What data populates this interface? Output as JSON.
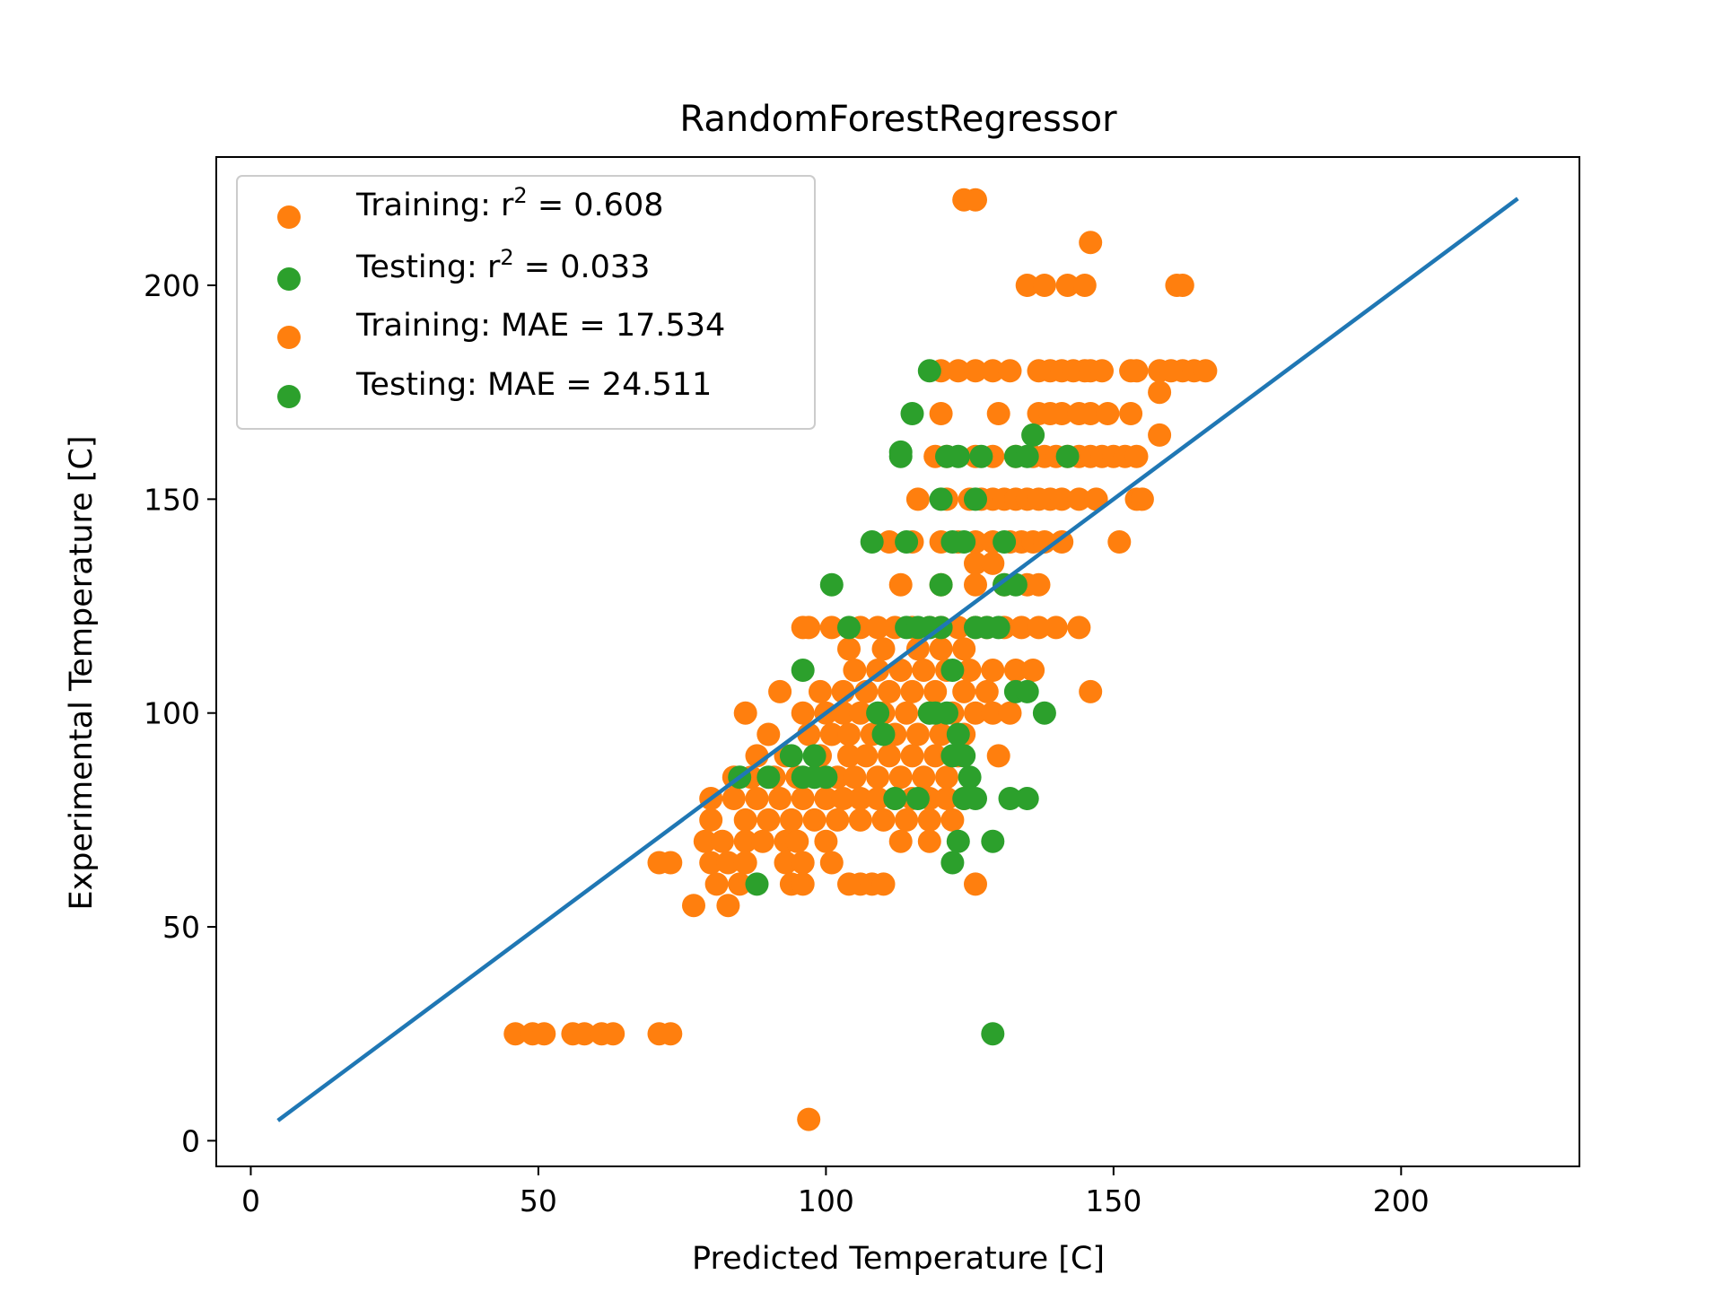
{
  "chart_data": {
    "type": "scatter",
    "title": "RandomForestRegressor",
    "xlabel": "Predicted Temperature [C]",
    "ylabel": "Experimental Temperature [C]",
    "xlim": [
      -6,
      231
    ],
    "ylim": [
      -6,
      230
    ],
    "xticks": [
      0,
      50,
      100,
      150,
      200
    ],
    "yticks": [
      0,
      50,
      100,
      150,
      200
    ],
    "legend_position": "top-left",
    "legend": [
      {
        "prefix": "Training: r",
        "sup": "2",
        "suffix": " = 0.608",
        "color": "#ff7f0e"
      },
      {
        "prefix": "Testing: r",
        "sup": "2",
        "suffix": " = 0.033",
        "color": "#2ca02c"
      },
      {
        "prefix": "Training: MAE = 17.534",
        "sup": "",
        "suffix": "",
        "color": "#ff7f0e"
      },
      {
        "prefix": "Testing: MAE = 24.511",
        "sup": "",
        "suffix": "",
        "color": "#2ca02c"
      }
    ],
    "line": {
      "color": "#1f77b4",
      "x": [
        5,
        220
      ],
      "y": [
        5,
        220
      ]
    },
    "series": [
      {
        "name": "Training",
        "color": "#ff7f0e",
        "points": [
          [
            124,
            220
          ],
          [
            126,
            220
          ],
          [
            146,
            210
          ],
          [
            135,
            200
          ],
          [
            138,
            200
          ],
          [
            142,
            200
          ],
          [
            145,
            200
          ],
          [
            161,
            200
          ],
          [
            162,
            200
          ],
          [
            120,
            180
          ],
          [
            123,
            180
          ],
          [
            126,
            180
          ],
          [
            129,
            180
          ],
          [
            132,
            180
          ],
          [
            137,
            180
          ],
          [
            139,
            180
          ],
          [
            141,
            180
          ],
          [
            143,
            180
          ],
          [
            145,
            180
          ],
          [
            146,
            180
          ],
          [
            148,
            180
          ],
          [
            153,
            180
          ],
          [
            154,
            180
          ],
          [
            158,
            180
          ],
          [
            160,
            180
          ],
          [
            162,
            180
          ],
          [
            164,
            180
          ],
          [
            166,
            180
          ],
          [
            158,
            175
          ],
          [
            120,
            170
          ],
          [
            130,
            170
          ],
          [
            137,
            170
          ],
          [
            139,
            170
          ],
          [
            141,
            170
          ],
          [
            144,
            170
          ],
          [
            146,
            170
          ],
          [
            149,
            170
          ],
          [
            153,
            170
          ],
          [
            158,
            165
          ],
          [
            119,
            160
          ],
          [
            121,
            160
          ],
          [
            126,
            160
          ],
          [
            129,
            160
          ],
          [
            133,
            160
          ],
          [
            136,
            160
          ],
          [
            138,
            160
          ],
          [
            140,
            160
          ],
          [
            142,
            160
          ],
          [
            144,
            160
          ],
          [
            146,
            160
          ],
          [
            148,
            160
          ],
          [
            150,
            160
          ],
          [
            152,
            160
          ],
          [
            154,
            160
          ],
          [
            116,
            150
          ],
          [
            121,
            150
          ],
          [
            125,
            150
          ],
          [
            127,
            150
          ],
          [
            129,
            150
          ],
          [
            131,
            150
          ],
          [
            133,
            150
          ],
          [
            135,
            150
          ],
          [
            137,
            150
          ],
          [
            139,
            150
          ],
          [
            141,
            150
          ],
          [
            144,
            150
          ],
          [
            147,
            150
          ],
          [
            154,
            150
          ],
          [
            155,
            150
          ],
          [
            111,
            140
          ],
          [
            115,
            140
          ],
          [
            120,
            140
          ],
          [
            123,
            140
          ],
          [
            126,
            140
          ],
          [
            129,
            140
          ],
          [
            132,
            140
          ],
          [
            134,
            140
          ],
          [
            136,
            140
          ],
          [
            138,
            140
          ],
          [
            141,
            140
          ],
          [
            151,
            140
          ],
          [
            126,
            135
          ],
          [
            129,
            135
          ],
          [
            113,
            130
          ],
          [
            120,
            130
          ],
          [
            126,
            130
          ],
          [
            131,
            130
          ],
          [
            135,
            130
          ],
          [
            137,
            130
          ],
          [
            96,
            120
          ],
          [
            97,
            120
          ],
          [
            101,
            120
          ],
          [
            106,
            120
          ],
          [
            109,
            120
          ],
          [
            112,
            120
          ],
          [
            115,
            120
          ],
          [
            118,
            120
          ],
          [
            120,
            120
          ],
          [
            123,
            120
          ],
          [
            126,
            120
          ],
          [
            128,
            120
          ],
          [
            131,
            120
          ],
          [
            134,
            120
          ],
          [
            137,
            120
          ],
          [
            140,
            120
          ],
          [
            144,
            120
          ],
          [
            104,
            115
          ],
          [
            110,
            115
          ],
          [
            116,
            115
          ],
          [
            120,
            115
          ],
          [
            124,
            115
          ],
          [
            105,
            110
          ],
          [
            109,
            110
          ],
          [
            113,
            110
          ],
          [
            117,
            110
          ],
          [
            121,
            110
          ],
          [
            125,
            110
          ],
          [
            129,
            110
          ],
          [
            133,
            110
          ],
          [
            136,
            110
          ],
          [
            92,
            105
          ],
          [
            99,
            105
          ],
          [
            103,
            105
          ],
          [
            107,
            105
          ],
          [
            111,
            105
          ],
          [
            115,
            105
          ],
          [
            119,
            105
          ],
          [
            124,
            105
          ],
          [
            128,
            105
          ],
          [
            146,
            105
          ],
          [
            86,
            100
          ],
          [
            96,
            100
          ],
          [
            100,
            100
          ],
          [
            103,
            100
          ],
          [
            106,
            100
          ],
          [
            110,
            100
          ],
          [
            114,
            100
          ],
          [
            118,
            100
          ],
          [
            122,
            100
          ],
          [
            126,
            100
          ],
          [
            129,
            100
          ],
          [
            132,
            100
          ],
          [
            90,
            95
          ],
          [
            97,
            95
          ],
          [
            101,
            95
          ],
          [
            104,
            95
          ],
          [
            108,
            95
          ],
          [
            112,
            95
          ],
          [
            116,
            95
          ],
          [
            120,
            95
          ],
          [
            124,
            95
          ],
          [
            88,
            90
          ],
          [
            93,
            90
          ],
          [
            99,
            90
          ],
          [
            104,
            90
          ],
          [
            107,
            90
          ],
          [
            111,
            90
          ],
          [
            115,
            90
          ],
          [
            119,
            90
          ],
          [
            123,
            90
          ],
          [
            130,
            90
          ],
          [
            84,
            85
          ],
          [
            87,
            85
          ],
          [
            91,
            85
          ],
          [
            95,
            85
          ],
          [
            98,
            85
          ],
          [
            102,
            85
          ],
          [
            105,
            85
          ],
          [
            109,
            85
          ],
          [
            113,
            85
          ],
          [
            117,
            85
          ],
          [
            121,
            85
          ],
          [
            80,
            80
          ],
          [
            84,
            80
          ],
          [
            88,
            80
          ],
          [
            92,
            80
          ],
          [
            96,
            80
          ],
          [
            100,
            80
          ],
          [
            103,
            80
          ],
          [
            106,
            80
          ],
          [
            109,
            80
          ],
          [
            112,
            80
          ],
          [
            115,
            80
          ],
          [
            118,
            80
          ],
          [
            121,
            80
          ],
          [
            124,
            80
          ],
          [
            80,
            75
          ],
          [
            86,
            75
          ],
          [
            90,
            75
          ],
          [
            94,
            75
          ],
          [
            98,
            75
          ],
          [
            102,
            75
          ],
          [
            106,
            75
          ],
          [
            110,
            75
          ],
          [
            114,
            75
          ],
          [
            118,
            75
          ],
          [
            122,
            75
          ],
          [
            79,
            70
          ],
          [
            82,
            70
          ],
          [
            86,
            70
          ],
          [
            89,
            70
          ],
          [
            93,
            70
          ],
          [
            95,
            70
          ],
          [
            100,
            70
          ],
          [
            113,
            70
          ],
          [
            118,
            70
          ],
          [
            71,
            65
          ],
          [
            73,
            65
          ],
          [
            80,
            65
          ],
          [
            83,
            65
          ],
          [
            86,
            65
          ],
          [
            93,
            65
          ],
          [
            96,
            65
          ],
          [
            101,
            65
          ],
          [
            81,
            60
          ],
          [
            85,
            60
          ],
          [
            94,
            60
          ],
          [
            96,
            60
          ],
          [
            104,
            60
          ],
          [
            106,
            60
          ],
          [
            108,
            60
          ],
          [
            110,
            60
          ],
          [
            126,
            60
          ],
          [
            77,
            55
          ],
          [
            83,
            55
          ],
          [
            46,
            25
          ],
          [
            49,
            25
          ],
          [
            51,
            25
          ],
          [
            56,
            25
          ],
          [
            58,
            25
          ],
          [
            61,
            25
          ],
          [
            63,
            25
          ],
          [
            71,
            25
          ],
          [
            73,
            25
          ],
          [
            97,
            5
          ]
        ]
      },
      {
        "name": "Testing",
        "color": "#2ca02c",
        "points": [
          [
            118,
            180
          ],
          [
            115,
            170
          ],
          [
            113,
            161
          ],
          [
            113,
            160
          ],
          [
            121,
            160
          ],
          [
            123,
            160
          ],
          [
            127,
            160
          ],
          [
            133,
            160
          ],
          [
            135,
            160
          ],
          [
            142,
            160
          ],
          [
            136,
            165
          ],
          [
            120,
            150
          ],
          [
            126,
            150
          ],
          [
            108,
            140
          ],
          [
            114,
            140
          ],
          [
            122,
            140
          ],
          [
            124,
            140
          ],
          [
            131,
            140
          ],
          [
            101,
            130
          ],
          [
            120,
            130
          ],
          [
            131,
            130
          ],
          [
            133,
            130
          ],
          [
            104,
            120
          ],
          [
            114,
            120
          ],
          [
            116,
            120
          ],
          [
            118,
            120
          ],
          [
            120,
            120
          ],
          [
            126,
            120
          ],
          [
            128,
            120
          ],
          [
            130,
            120
          ],
          [
            96,
            110
          ],
          [
            122,
            110
          ],
          [
            133,
            105
          ],
          [
            135,
            105
          ],
          [
            138,
            100
          ],
          [
            109,
            100
          ],
          [
            118,
            100
          ],
          [
            119,
            100
          ],
          [
            121,
            100
          ],
          [
            110,
            95
          ],
          [
            123,
            95
          ],
          [
            94,
            90
          ],
          [
            98,
            90
          ],
          [
            122,
            90
          ],
          [
            124,
            90
          ],
          [
            85,
            85
          ],
          [
            90,
            85
          ],
          [
            96,
            85
          ],
          [
            98,
            85
          ],
          [
            100,
            85
          ],
          [
            125,
            85
          ],
          [
            112,
            80
          ],
          [
            116,
            80
          ],
          [
            124,
            80
          ],
          [
            126,
            80
          ],
          [
            132,
            80
          ],
          [
            135,
            80
          ],
          [
            123,
            70
          ],
          [
            129,
            70
          ],
          [
            122,
            65
          ],
          [
            88,
            60
          ],
          [
            129,
            25
          ]
        ]
      }
    ]
  }
}
